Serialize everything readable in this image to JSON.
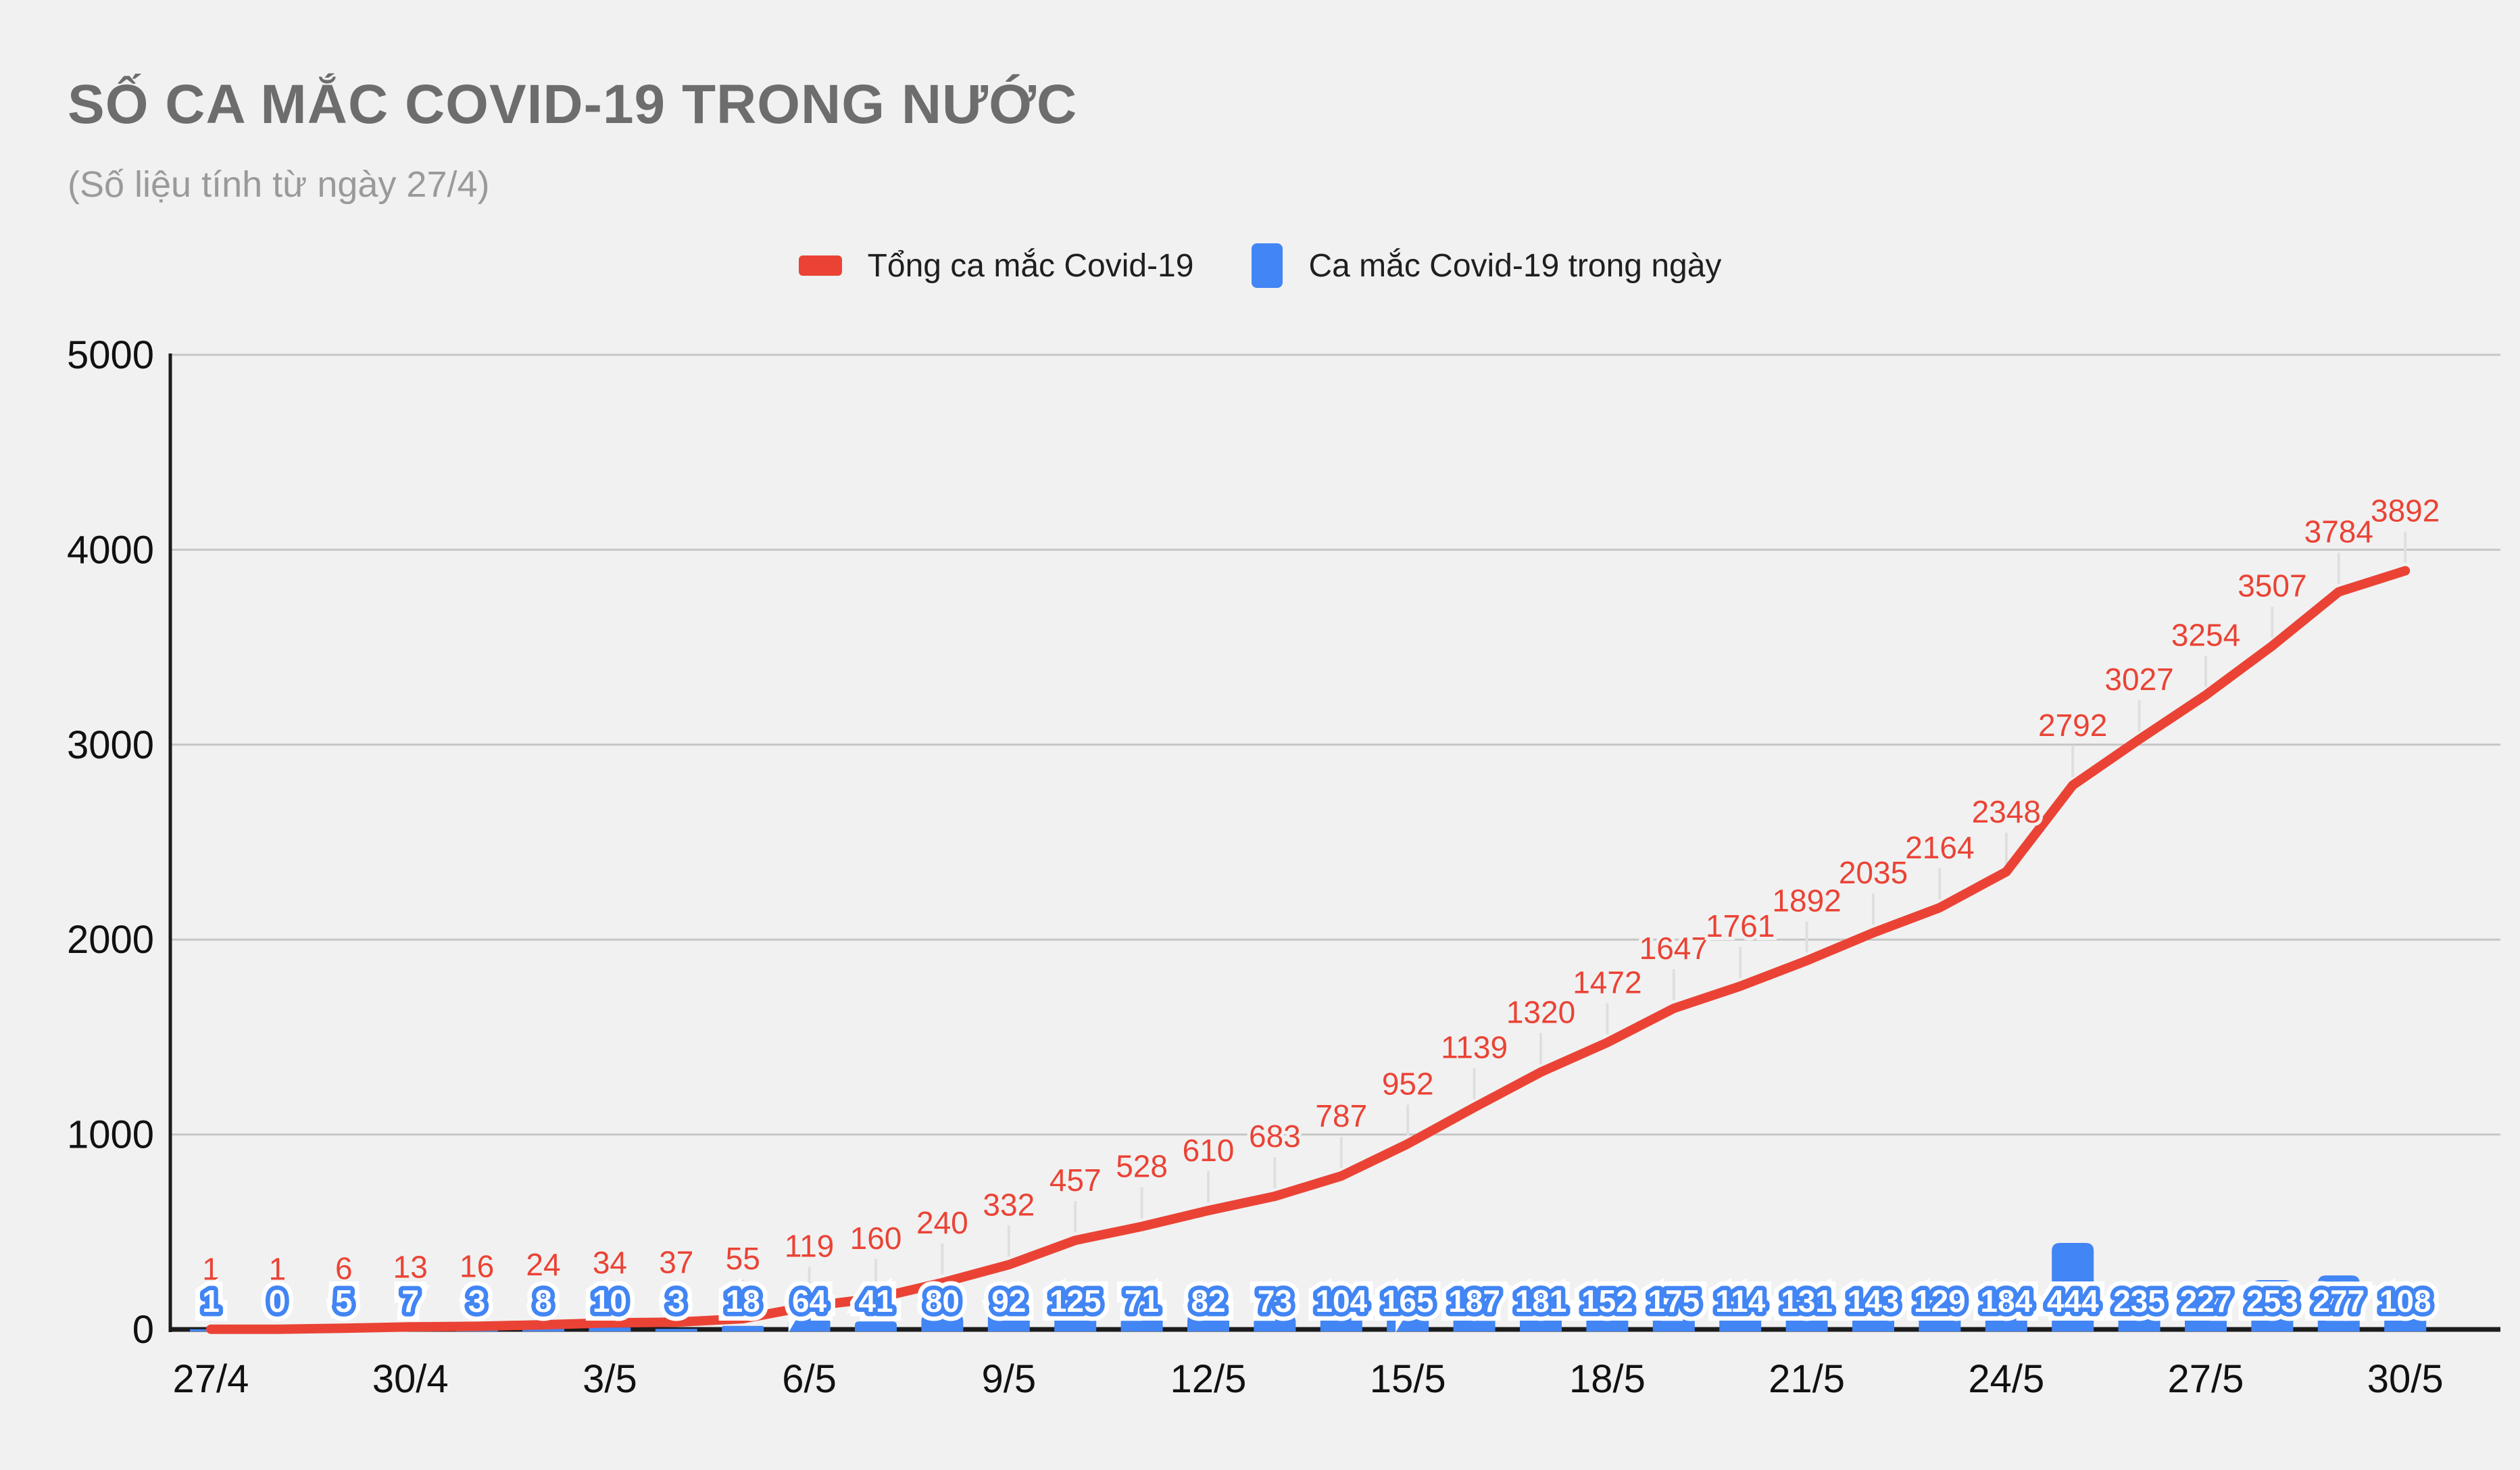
{
  "title": "SỐ CA MẮC COVID-19 TRONG NƯỚC",
  "subtitle": "(Số liệu tính từ ngày 27/4)",
  "legend": [
    {
      "label": "Tổng ca mắc Covid-19",
      "color": "#ea4335",
      "swatch": "line"
    },
    {
      "label": "Ca mắc Covid-19 trong ngày",
      "color": "#4285f4",
      "swatch": "bar"
    }
  ],
  "colors": {
    "background": "#f1f1f1",
    "gridline": "#c6c6c6",
    "axis": "#1c1c1c",
    "leader_line": "#dfdfdf",
    "title_gray": "#6d6d6d",
    "subtitle_gray": "#9a9a9a",
    "tick_label": "#111111",
    "series_red": "#ea4335",
    "series_blue": "#4285f4"
  },
  "chart_data": {
    "type": "line",
    "combo": "line + bar",
    "categories": [
      "27/4",
      "28/4",
      "29/4",
      "30/4",
      "1/5",
      "2/5",
      "3/5",
      "4/5",
      "5/5",
      "6/5",
      "7/5",
      "8/5",
      "9/5",
      "10/5",
      "11/5",
      "12/5",
      "13/5",
      "14/5",
      "15/5",
      "16/5",
      "17/5",
      "18/5",
      "19/5",
      "20/5",
      "21/5",
      "22/5",
      "23/5",
      "24/5",
      "25/5",
      "26/5",
      "27/5",
      "28/5",
      "29/5",
      "30/5"
    ],
    "x_tick_labels_shown": [
      "27/4",
      "30/4",
      "3/5",
      "6/5",
      "9/5",
      "12/5",
      "15/5",
      "18/5",
      "21/5",
      "24/5",
      "27/5",
      "30/5"
    ],
    "x_tick_every": 3,
    "series": [
      {
        "name": "Tổng ca mắc Covid-19",
        "type": "line",
        "color": "#ea4335",
        "values": [
          1,
          1,
          6,
          13,
          16,
          24,
          34,
          37,
          55,
          119,
          160,
          240,
          332,
          457,
          528,
          610,
          683,
          787,
          952,
          1139,
          1320,
          1472,
          1647,
          1761,
          1892,
          2035,
          2164,
          2348,
          2792,
          3027,
          3254,
          3507,
          3784,
          3892
        ]
      },
      {
        "name": "Ca mắc Covid-19 trong ngày",
        "type": "bar",
        "color": "#4285f4",
        "values": [
          1,
          0,
          5,
          7,
          3,
          8,
          10,
          3,
          18,
          64,
          41,
          80,
          92,
          125,
          71,
          82,
          73,
          104,
          165,
          187,
          181,
          152,
          175,
          114,
          131,
          143,
          129,
          184,
          444,
          235,
          227,
          253,
          277,
          108
        ]
      }
    ],
    "title": "SỐ CA MẮC COVID-19 TRONG NƯỚC",
    "xlabel": "",
    "ylabel": "",
    "ylim": [
      0,
      5000
    ],
    "y_ticks": [
      0,
      1000,
      2000,
      3000,
      4000,
      5000
    ],
    "grid": "horizontal",
    "legend_position": "top-center",
    "data_labels": "all points (red totals above line, blue daily counts above bars)"
  }
}
